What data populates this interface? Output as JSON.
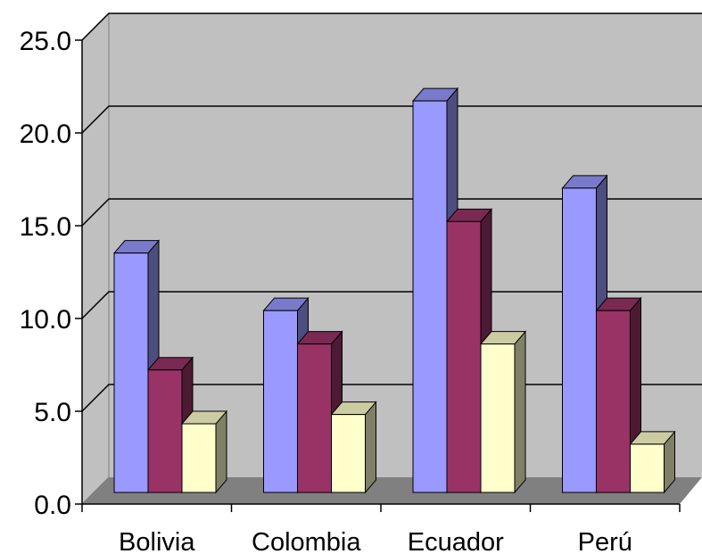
{
  "chart_data": {
    "type": "bar",
    "title": "",
    "xlabel": "",
    "ylabel": "",
    "categories": [
      "Bolivia",
      "Colombia",
      "Ecuador",
      "Perú"
    ],
    "series": [
      {
        "values": [
          12.9,
          9.8,
          21.1,
          16.4
        ],
        "color": "#9999ff"
      },
      {
        "values": [
          6.6,
          8.0,
          14.6,
          9.8
        ],
        "color": "#993366"
      },
      {
        "values": [
          3.7,
          4.2,
          8.0,
          2.6
        ],
        "color": "#ffffcc"
      }
    ],
    "ylim": [
      0,
      25
    ],
    "y_ticks": [
      "0.0",
      "5.0",
      "10.0",
      "15.0",
      "20.0",
      "25.0"
    ],
    "grid": true,
    "legend": "none",
    "colors": {
      "wall": "#c0c0c0",
      "floor": "#808080",
      "gridline": "#000000"
    }
  }
}
